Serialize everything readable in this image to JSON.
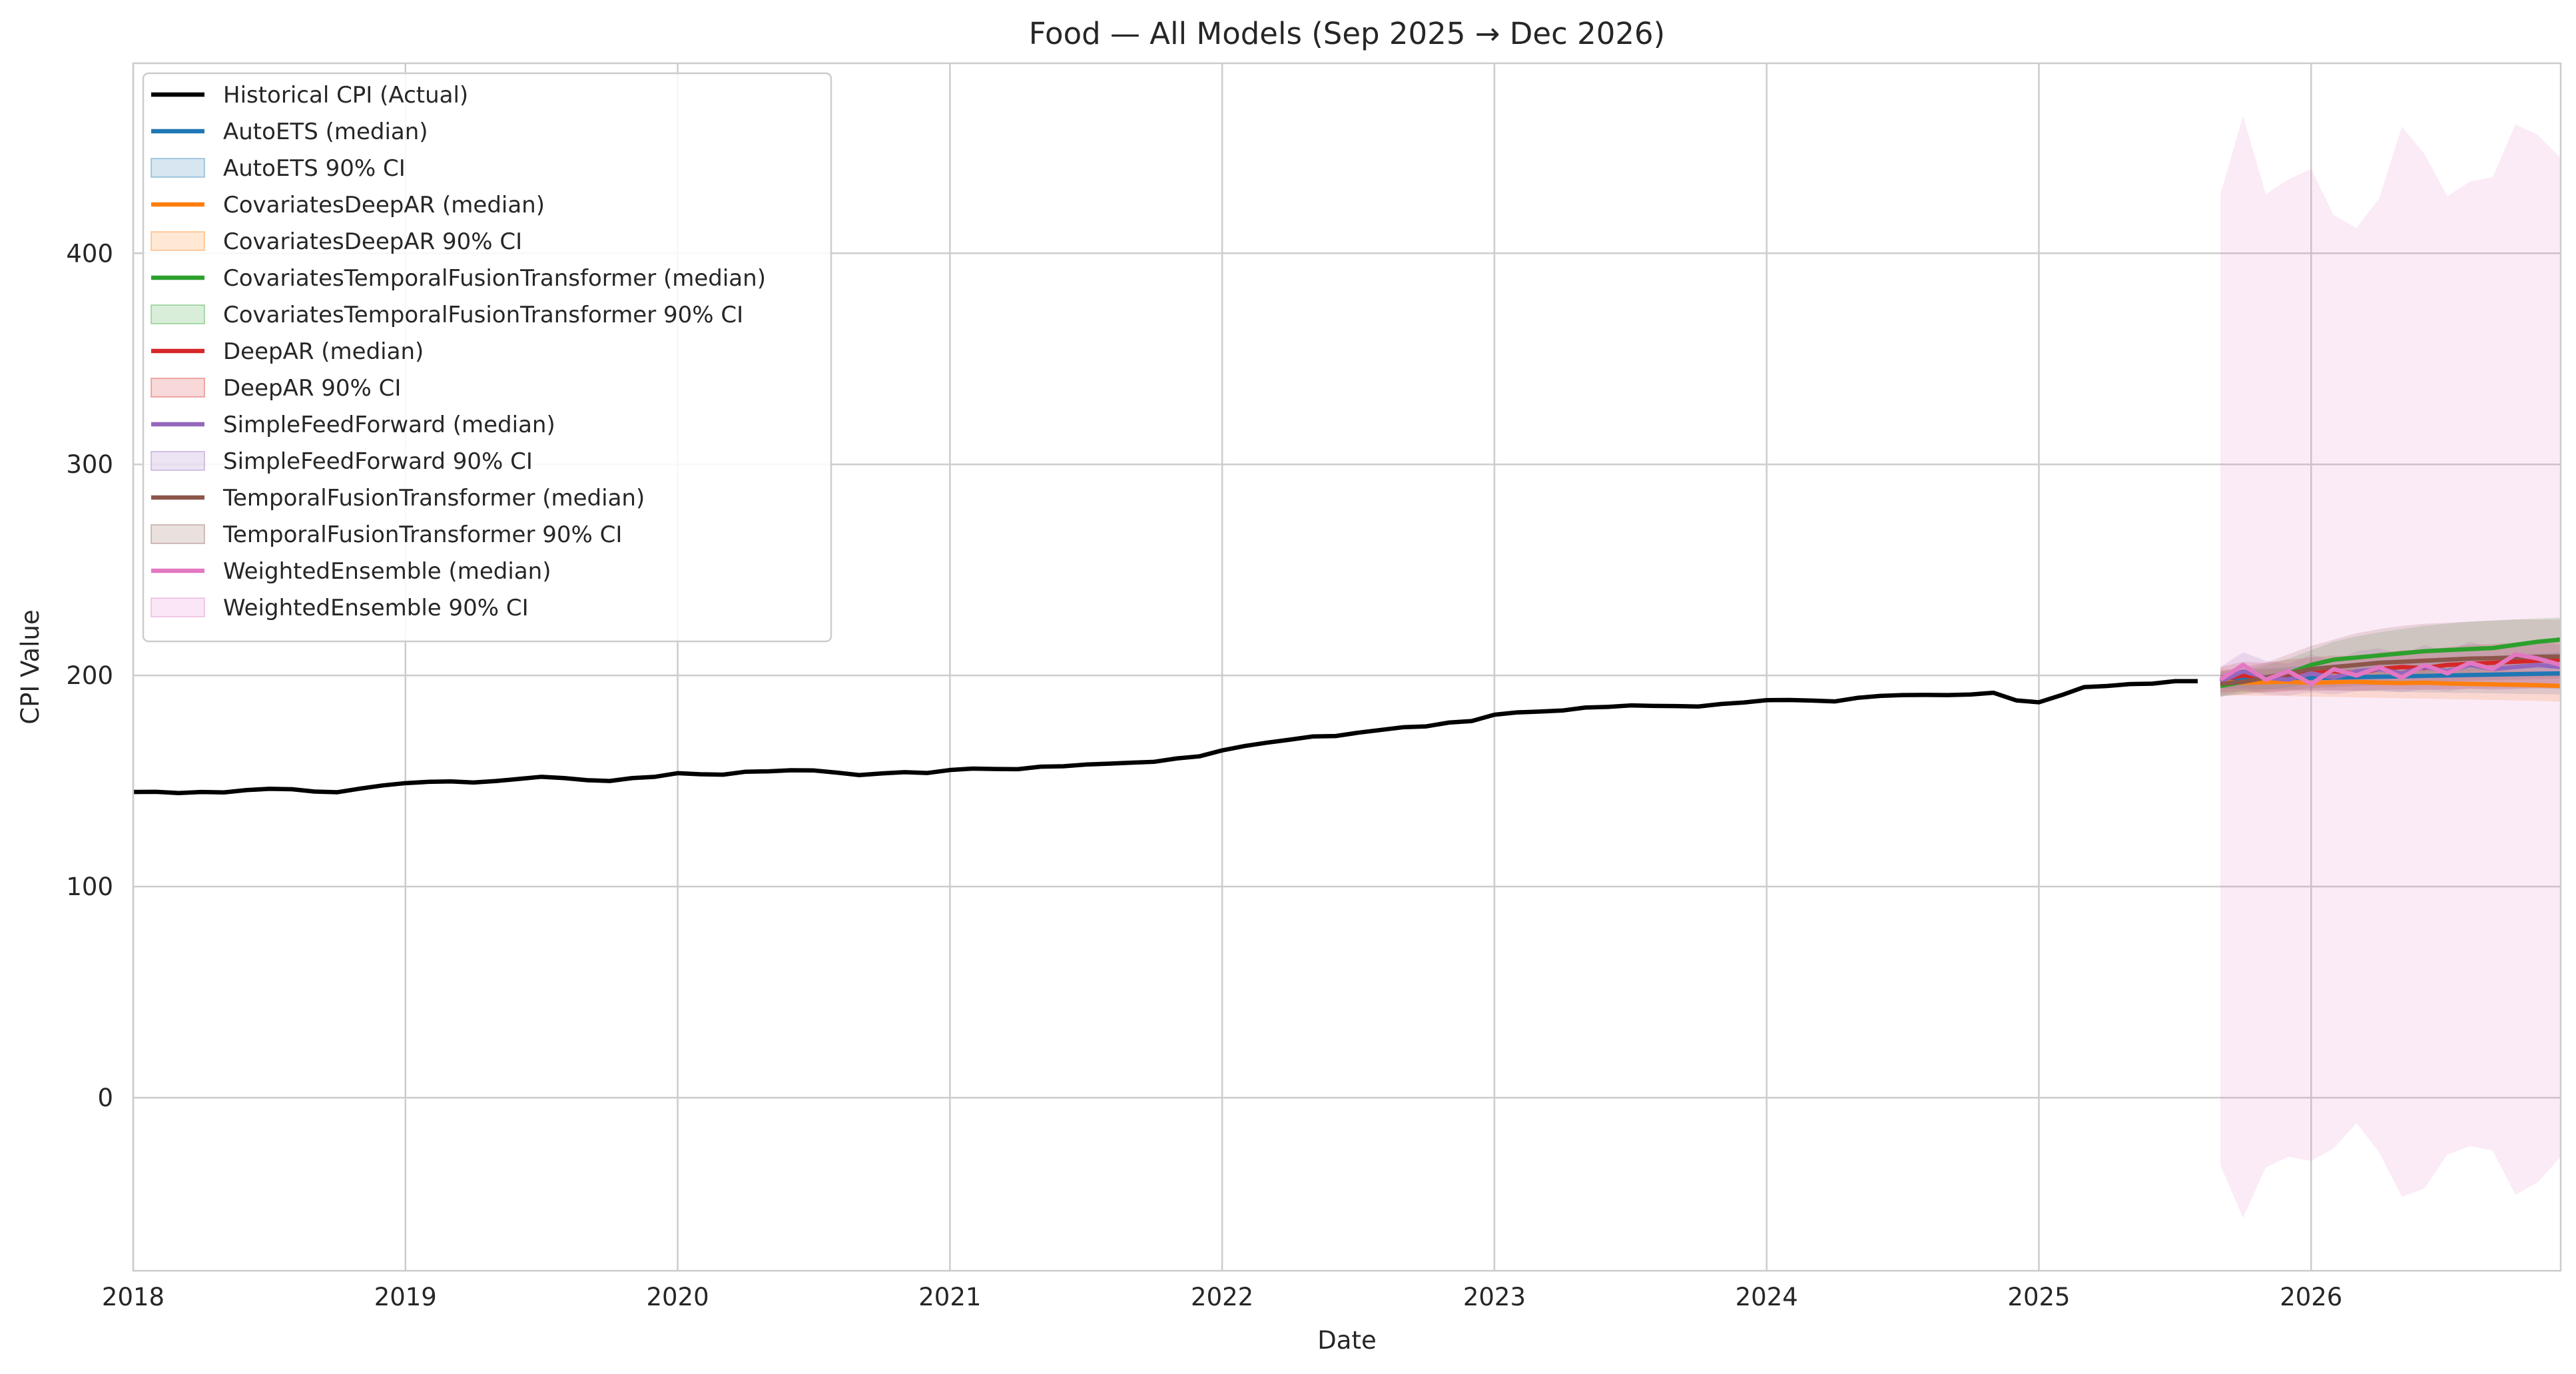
{
  "chart_data": {
    "type": "line",
    "title": "Food — All Models (Sep 2025 → Dec 2026)",
    "xlabel": "Date",
    "ylabel": "CPI Value",
    "xlim": [
      "2018-01",
      "2026-12"
    ],
    "ylim": [
      -82,
      490
    ],
    "x_ticks": [
      "2018",
      "2019",
      "2020",
      "2021",
      "2022",
      "2023",
      "2024",
      "2025",
      "2026"
    ],
    "y_ticks": [
      0,
      100,
      200,
      300,
      400
    ],
    "grid": true,
    "legend_position": "top-left",
    "historical": {
      "name": "Historical CPI (Actual)",
      "color": "#000000",
      "x": [
        "2018-01",
        "2018-02",
        "2018-03",
        "2018-04",
        "2018-05",
        "2018-06",
        "2018-07",
        "2018-08",
        "2018-09",
        "2018-10",
        "2018-11",
        "2018-12",
        "2019-01",
        "2019-02",
        "2019-03",
        "2019-04",
        "2019-05",
        "2019-06",
        "2019-07",
        "2019-08",
        "2019-09",
        "2019-10",
        "2019-11",
        "2019-12",
        "2020-01",
        "2020-02",
        "2020-03",
        "2020-04",
        "2020-05",
        "2020-06",
        "2020-07",
        "2020-08",
        "2020-09",
        "2020-10",
        "2020-11",
        "2020-12",
        "2021-01",
        "2021-02",
        "2021-03",
        "2021-04",
        "2021-05",
        "2021-06",
        "2021-07",
        "2021-08",
        "2021-09",
        "2021-10",
        "2021-11",
        "2021-12",
        "2022-01",
        "2022-02",
        "2022-03",
        "2022-04",
        "2022-05",
        "2022-06",
        "2022-07",
        "2022-08",
        "2022-09",
        "2022-10",
        "2022-11",
        "2022-12",
        "2023-01",
        "2023-02",
        "2023-03",
        "2023-04",
        "2023-05",
        "2023-06",
        "2023-07",
        "2023-08",
        "2023-09",
        "2023-10",
        "2023-11",
        "2023-12",
        "2024-01",
        "2024-02",
        "2024-03",
        "2024-04",
        "2024-05",
        "2024-06",
        "2024-07",
        "2024-08",
        "2024-09",
        "2024-10",
        "2024-11",
        "2024-12",
        "2025-01",
        "2025-02",
        "2025-03",
        "2025-04",
        "2025-05",
        "2025-06",
        "2025-07",
        "2025-08"
      ],
      "y": [
        144.8,
        144.9,
        144.3,
        144.8,
        144.6,
        145.7,
        146.3,
        146.1,
        145.0,
        144.7,
        146.4,
        147.9,
        149.0,
        149.6,
        149.8,
        149.3,
        150.0,
        151.0,
        152.0,
        151.4,
        150.4,
        150.0,
        151.4,
        152.0,
        153.7,
        153.2,
        153.0,
        154.4,
        154.6,
        155.1,
        155.0,
        154.0,
        152.8,
        153.6,
        154.2,
        153.8,
        155.2,
        155.9,
        155.7,
        155.6,
        156.8,
        157.0,
        157.8,
        158.2,
        158.7,
        159.1,
        160.7,
        161.7,
        164.5,
        166.6,
        168.2,
        169.6,
        171.1,
        171.3,
        172.9,
        174.2,
        175.5,
        175.9,
        177.7,
        178.4,
        181.4,
        182.5,
        182.9,
        183.4,
        184.8,
        185.1,
        185.8,
        185.6,
        185.5,
        185.3,
        186.5,
        187.2,
        188.3,
        188.4,
        188.1,
        187.7,
        189.4,
        190.3,
        190.7,
        190.8,
        190.7,
        191.0,
        191.8,
        188.2,
        187.3,
        190.7,
        194.5,
        195.0,
        195.9,
        196.1,
        197.3,
        197.3
      ]
    },
    "forecast_x": [
      "2025-09",
      "2025-10",
      "2025-11",
      "2025-12",
      "2026-01",
      "2026-02",
      "2026-03",
      "2026-04",
      "2026-05",
      "2026-06",
      "2026-07",
      "2026-08",
      "2026-09",
      "2026-10",
      "2026-11",
      "2026-12"
    ],
    "series": [
      {
        "name": "AutoETS",
        "median_label": "AutoETS (median)",
        "ci_label": "AutoETS 90% CI",
        "color": "#1f77b4",
        "median": [
          198.0,
          198.2,
          198.4,
          198.6,
          198.8,
          199.0,
          199.2,
          199.4,
          199.6,
          199.8,
          200.0,
          200.2,
          200.4,
          200.6,
          200.8,
          201.0
        ],
        "ci_lower": [
          194.0,
          193.7,
          193.5,
          193.2,
          193.0,
          192.8,
          192.6,
          192.4,
          192.2,
          192.0,
          191.8,
          191.7,
          191.5,
          191.3,
          191.2,
          191.0
        ],
        "ci_upper": [
          202.0,
          202.7,
          203.3,
          204.0,
          204.6,
          205.2,
          205.8,
          206.4,
          207.0,
          207.6,
          208.2,
          208.7,
          209.3,
          209.9,
          210.4,
          211.0
        ]
      },
      {
        "name": "CovariatesDeepAR",
        "median_label": "CovariatesDeepAR (median)",
        "ci_label": "CovariatesDeepAR 90% CI",
        "color": "#ff7f0e",
        "median": [
          197.0,
          196.5,
          196.8,
          197.0,
          196.5,
          196.8,
          197.0,
          196.6,
          196.4,
          196.6,
          196.2,
          196.0,
          195.8,
          195.6,
          195.4,
          195.0
        ],
        "ci_lower": [
          191.0,
          190.5,
          190.3,
          190.2,
          190.0,
          189.8,
          189.6,
          189.4,
          189.2,
          189.0,
          188.8,
          188.6,
          188.4,
          188.2,
          188.0,
          187.5
        ],
        "ci_upper": [
          203.0,
          202.6,
          202.8,
          203.0,
          202.8,
          202.9,
          203.1,
          202.9,
          202.8,
          202.9,
          202.7,
          202.6,
          202.4,
          202.3,
          202.1,
          201.8
        ]
      },
      {
        "name": "CovariatesTemporalFusionTransformer",
        "median_label": "CovariatesTemporalFusionTransformer (median)",
        "ci_label": "CovariatesTemporalFusionTransformer 90% CI",
        "color": "#2ca02c",
        "median": [
          195.0,
          197.0,
          199.0,
          201.0,
          205.0,
          207.5,
          208.5,
          209.5,
          210.5,
          211.5,
          212.0,
          212.5,
          213.0,
          214.5,
          216.0,
          217.0
        ],
        "ci_lower": [
          190.0,
          191.5,
          193.0,
          194.5,
          196.0,
          197.5,
          198.5,
          199.5,
          200.5,
          201.0,
          201.5,
          202.0,
          202.5,
          203.0,
          203.5,
          204.0
        ],
        "ci_upper": [
          200.0,
          202.5,
          205.0,
          208.0,
          212.0,
          216.0,
          218.5,
          220.5,
          222.0,
          223.5,
          224.5,
          225.5,
          226.0,
          226.5,
          227.0,
          227.5
        ]
      },
      {
        "name": "DeepAR",
        "median_label": "DeepAR (median)",
        "ci_label": "DeepAR 90% CI",
        "color": "#d62728",
        "median": [
          198.0,
          200.0,
          199.0,
          200.5,
          201.0,
          202.0,
          201.0,
          203.0,
          204.0,
          203.5,
          205.0,
          205.5,
          206.0,
          206.5,
          207.0,
          207.5
        ],
        "ci_lower": [
          192.0,
          192.5,
          192.0,
          192.5,
          192.8,
          193.0,
          192.8,
          193.2,
          193.4,
          193.2,
          193.5,
          193.6,
          193.7,
          193.8,
          193.9,
          194.0
        ],
        "ci_upper": [
          204.0,
          206.5,
          206.0,
          207.5,
          208.5,
          209.5,
          209.0,
          210.8,
          212.0,
          212.0,
          213.5,
          214.5,
          215.0,
          215.5,
          216.0,
          216.5
        ]
      },
      {
        "name": "SimpleFeedForward",
        "median_label": "SimpleFeedForward (median)",
        "ci_label": "SimpleFeedForward 90% CI",
        "color": "#9467bd",
        "median": [
          197.0,
          202.0,
          199.0,
          198.0,
          201.0,
          199.0,
          202.0,
          203.0,
          201.0,
          204.0,
          202.0,
          205.0,
          203.0,
          204.0,
          205.0,
          204.0
        ],
        "ci_lower": [
          190.0,
          193.0,
          191.0,
          190.5,
          192.0,
          191.0,
          192.5,
          193.0,
          192.0,
          193.5,
          192.5,
          194.0,
          193.0,
          193.5,
          194.0,
          193.5
        ],
        "ci_upper": [
          204.0,
          211.0,
          207.0,
          205.5,
          210.0,
          207.0,
          211.5,
          213.0,
          210.0,
          214.5,
          211.5,
          216.0,
          213.0,
          214.5,
          216.0,
          214.5
        ]
      },
      {
        "name": "TemporalFusionTransformer",
        "median_label": "TemporalFusionTransformer (median)",
        "ci_label": "TemporalFusionTransformer 90% CI",
        "color": "#8c564b",
        "median": [
          196.0,
          197.0,
          199.0,
          201.0,
          203.0,
          204.0,
          205.0,
          206.0,
          206.5,
          207.0,
          207.5,
          208.0,
          208.2,
          208.5,
          208.8,
          209.0
        ],
        "ci_lower": [
          190.0,
          191.0,
          192.0,
          193.0,
          194.0,
          194.5,
          195.0,
          195.5,
          196.0,
          196.5,
          197.0,
          197.5,
          197.8,
          198.0,
          198.3,
          198.5
        ],
        "ci_upper": [
          202.0,
          204.0,
          206.0,
          210.0,
          214.0,
          217.0,
          220.0,
          222.0,
          223.5,
          224.5,
          225.0,
          225.5,
          226.0,
          226.5,
          226.5,
          226.5
        ]
      },
      {
        "name": "WeightedEnsemble",
        "median_label": "WeightedEnsemble (median)",
        "ci_label": "WeightedEnsemble 90% CI",
        "color": "#e377c2",
        "median": [
          198.0,
          205.0,
          198.0,
          202.0,
          196.0,
          203.0,
          200.0,
          204.0,
          199.0,
          205.0,
          201.0,
          206.0,
          203.0,
          210.0,
          208.0,
          205.0
        ],
        "ci_lower": [
          -32.0,
          -57.0,
          -33.0,
          -28.0,
          -30.0,
          -24.0,
          -12.0,
          -26.0,
          -47.0,
          -43.0,
          -27.0,
          -23.0,
          -25.0,
          -46.0,
          -40.0,
          -28.0
        ],
        "ci_upper": [
          428.0,
          465.0,
          428.0,
          435.0,
          440.0,
          418.0,
          412.0,
          426.0,
          460.0,
          447.0,
          427.0,
          434.0,
          436.0,
          461.0,
          456.0,
          445.0
        ]
      }
    ]
  }
}
